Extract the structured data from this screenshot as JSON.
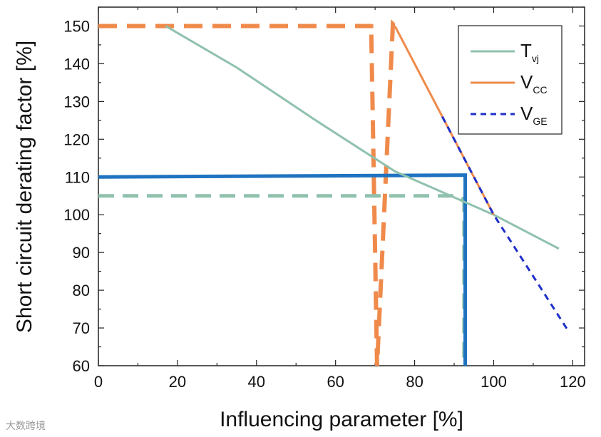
{
  "chart_data": {
    "type": "line",
    "title": "",
    "xlabel": "Influencing parameter [%]",
    "ylabel": "Short circuit derating factor [%]",
    "xlim": [
      0,
      123
    ],
    "ylim": [
      60,
      155
    ],
    "xticks": [
      0,
      20,
      40,
      60,
      80,
      100,
      120
    ],
    "yticks": [
      60,
      70,
      80,
      90,
      100,
      110,
      120,
      130,
      140,
      150
    ],
    "grid": false,
    "legend_position": "top-right",
    "colors": {
      "tvj": "#8fc1ad",
      "vcc": "#ef8a4b",
      "vge": "#1f2fc9",
      "blue_line": "#1f73c0"
    },
    "series": [
      {
        "name": "T",
        "sub": "vj",
        "color": "#8fc1ad",
        "style": "solid",
        "x": [
          17,
          35,
          55,
          75,
          100,
          116.5
        ],
        "y": [
          150,
          139,
          125,
          111.5,
          100,
          91
        ]
      },
      {
        "name": "V",
        "sub": "CC",
        "color": "#ef8a4b",
        "style": "solid",
        "x": [
          75,
          100
        ],
        "y": [
          150,
          100
        ]
      },
      {
        "name": "V",
        "sub": "GE",
        "color": "#1f2fc9",
        "style": "dashed",
        "x": [
          87,
          100,
          119
        ],
        "y": [
          126,
          100,
          69
        ]
      }
    ],
    "reference_lines": [
      {
        "name": "vcc-reference",
        "color": "#ef8a4b",
        "style": "dashed",
        "x": [
          0,
          69,
          69,
          70.5,
          74.5,
          75
        ],
        "y": [
          150,
          150,
          150.5,
          60,
          150.5,
          150
        ]
      },
      {
        "name": "tvj-reference",
        "color": "#8fc1ad",
        "style": "dashed",
        "x": [
          0,
          91,
          92.5,
          92.5
        ],
        "y": [
          105,
          105,
          104,
          60
        ]
      },
      {
        "name": "combined-reference",
        "color": "#1f73c0",
        "style": "solid",
        "x": [
          0,
          92.8,
          92.8
        ],
        "y": [
          110,
          110.5,
          60
        ]
      }
    ]
  },
  "watermark": "大数跨境"
}
